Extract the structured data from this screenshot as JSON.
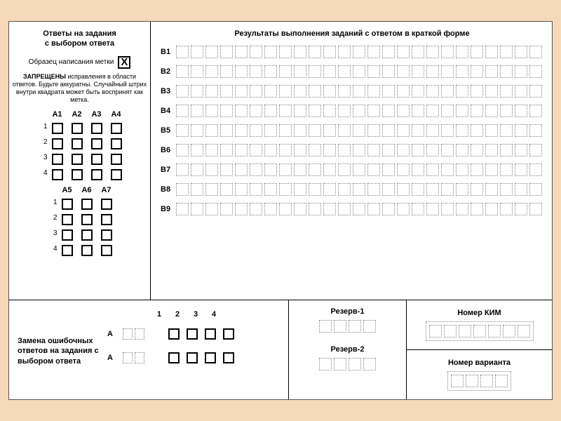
{
  "colors": {
    "page_bg": "#f5d9b8",
    "sheet_bg": "#ffffff",
    "border": "#000000",
    "box_solid": "#000000",
    "box_dotted": "#888888",
    "text": "#000000"
  },
  "left": {
    "header_line1": "Ответы на задания",
    "header_line2": "с выбором ответа",
    "sample_label": "Образец написания метки",
    "sample_mark": "X",
    "warn_bold": "ЗАПРЕЩЕНЫ",
    "warn_rest": " исправления в области ответов. Будьте аккуратны. Случайный штрих внутри квадрата может быть воспринят как метка.",
    "grid1": {
      "cols": [
        "А1",
        "А2",
        "А3",
        "А4"
      ],
      "rows": [
        "1",
        "2",
        "3",
        "4"
      ]
    },
    "grid2": {
      "cols": [
        "А5",
        "А6",
        "А7"
      ],
      "rows": [
        "1",
        "2",
        "3",
        "4"
      ]
    }
  },
  "right": {
    "header": "Результаты выполнения заданий с ответом в краткой форме",
    "rows": [
      "В1",
      "В2",
      "В3",
      "В4",
      "В5",
      "В6",
      "В7",
      "В8",
      "В9"
    ],
    "cells_per_row": 25
  },
  "bottom": {
    "replace": {
      "label": "Замена ошибочных ответов на задания с выбором ответа",
      "header_nums": [
        "1",
        "2",
        "3",
        "4"
      ],
      "rows": [
        "А",
        "А"
      ],
      "pair_cells": 2,
      "answer_boxes": 4
    },
    "reserve": {
      "label1": "Резерв-1",
      "label2": "Резерв-2",
      "cells": 4
    },
    "kim": {
      "label": "Номер КИМ",
      "cells": 7
    },
    "variant": {
      "label": "Номер варианта",
      "cells": 4
    }
  }
}
